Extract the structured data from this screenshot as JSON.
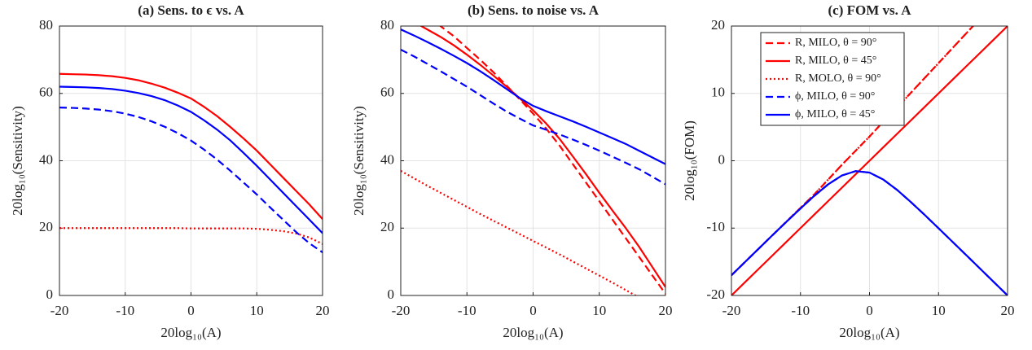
{
  "chart_data": [
    {
      "type": "line",
      "title": "(a) Sens. to ϵ vs. A",
      "xlabel": "20log₁₀(A)",
      "ylabel": "20log₁₀(Sensitivity)",
      "x": [
        -20,
        -18,
        -16,
        -14,
        -12,
        -10,
        -8,
        -6,
        -4,
        -2,
        0,
        2,
        4,
        6,
        8,
        10,
        12,
        14,
        16,
        18,
        20
      ],
      "xlim": [
        -20,
        20
      ],
      "xticks": [
        -20,
        -10,
        0,
        10,
        20
      ],
      "ylim": [
        0,
        80
      ],
      "yticks": [
        0,
        20,
        40,
        60,
        80
      ],
      "grid": true,
      "series": [
        {
          "color": "#ff0000",
          "linestyle": "solid",
          "values": [
            65.8,
            65.7,
            65.6,
            65.4,
            65.1,
            64.6,
            63.9,
            62.9,
            61.7,
            60.2,
            58.5,
            56,
            53.2,
            50,
            46.6,
            43,
            39,
            35,
            31,
            27,
            22.7
          ]
        },
        {
          "color": "#ff0000",
          "linestyle": "dotted",
          "values": [
            20,
            20,
            20,
            20,
            20,
            20,
            20,
            20,
            20,
            20,
            19.9,
            19.9,
            19.9,
            19.9,
            19.9,
            19.8,
            19.5,
            19.1,
            18.4,
            17.2,
            15.3
          ]
        },
        {
          "color": "#0000ff",
          "linestyle": "dashed",
          "values": [
            55.8,
            55.7,
            55.5,
            55.2,
            54.7,
            54,
            53,
            51.7,
            50.1,
            48.2,
            46,
            43.3,
            40.3,
            37,
            33.5,
            30,
            26.2,
            22.5,
            18.8,
            15.5,
            12.8
          ]
        },
        {
          "color": "#0000ff",
          "linestyle": "solid",
          "values": [
            62,
            61.9,
            61.8,
            61.6,
            61.3,
            60.8,
            60.1,
            59.2,
            58,
            56.4,
            54.5,
            52,
            49.2,
            46,
            42.3,
            38.5,
            34.5,
            30.5,
            26.5,
            22.5,
            18.5
          ]
        }
      ]
    },
    {
      "type": "line",
      "title": "(b) Sens. to noise vs. A",
      "xlabel": "20log₁₀(A)",
      "ylabel": "20log₁₀(Sensitivity)",
      "x": [
        -20,
        -18,
        -16,
        -14,
        -12,
        -10,
        -8,
        -6,
        -4,
        -2,
        0,
        2,
        4,
        6,
        8,
        10,
        12,
        14,
        16,
        18,
        20
      ],
      "xlim": [
        -20,
        20
      ],
      "xticks": [
        -20,
        -10,
        0,
        10,
        20
      ],
      "ylim": [
        0,
        80
      ],
      "yticks": [
        0,
        20,
        40,
        60,
        80
      ],
      "grid": true,
      "series": [
        {
          "color": "#ff0000",
          "linestyle": "dashed",
          "values": [
            88,
            86,
            83,
            80,
            77,
            73.5,
            70,
            66.3,
            62.3,
            58.2,
            54,
            49.5,
            44.5,
            39,
            33.5,
            28,
            22.5,
            17,
            11.5,
            6,
            0.5
          ]
        },
        {
          "color": "#ff0000",
          "linestyle": "solid",
          "values": [
            83,
            81.2,
            79,
            76.8,
            74.3,
            71.5,
            68.5,
            65.3,
            62,
            58.5,
            55,
            51,
            46.5,
            41.3,
            36,
            30.5,
            25.2,
            20,
            14.5,
            8.5,
            2.5
          ]
        },
        {
          "color": "#ff0000",
          "linestyle": "dotted",
          "values": [
            37,
            34.8,
            32.6,
            30.5,
            28.4,
            26.3,
            24.2,
            22.2,
            20.2,
            18.2,
            16.2,
            14.2,
            12.2,
            10.1,
            8,
            5.9,
            3.8,
            1.6,
            -0.6,
            -2.9,
            -5.2
          ]
        },
        {
          "color": "#0000ff",
          "linestyle": "dashed",
          "values": [
            73,
            71,
            68.8,
            66.6,
            64.3,
            62,
            59.5,
            57,
            54.6,
            52.5,
            50.5,
            49.2,
            47.8,
            46.3,
            44.7,
            43,
            41.2,
            39.4,
            37.5,
            35.3,
            33
          ]
        },
        {
          "color": "#0000ff",
          "linestyle": "solid",
          "values": [
            79,
            77.2,
            75.3,
            73.3,
            71.2,
            69,
            66.6,
            64,
            61.3,
            58.6,
            56.3,
            54.7,
            53.2,
            51.7,
            50.1,
            48.4,
            46.7,
            45,
            43,
            41,
            39
          ]
        }
      ]
    },
    {
      "type": "line",
      "title": "(c) FOM vs. A",
      "xlabel": "20log₁₀(A)",
      "ylabel": "20log₁₀(FOM)",
      "x": [
        -20,
        -18,
        -16,
        -14,
        -12,
        -10,
        -8,
        -6,
        -4,
        -2,
        0,
        2,
        4,
        6,
        8,
        10,
        12,
        14,
        16,
        18,
        20
      ],
      "xlim": [
        -20,
        20
      ],
      "xticks": [
        -20,
        -10,
        0,
        10,
        20
      ],
      "ylim": [
        -20,
        20
      ],
      "yticks": [
        -20,
        -10,
        0,
        10,
        20
      ],
      "grid": true,
      "legend": "upper left",
      "series": [
        {
          "name": "R, MILO, θ = 90°",
          "color": "#ff0000",
          "linestyle": "dashed",
          "values": [
            -17,
            -15,
            -13,
            -11,
            -9,
            -7,
            -5,
            -2.8,
            -0.6,
            1.5,
            3.6,
            5.8,
            7.9,
            10.1,
            12.3,
            14.5,
            16.7,
            18.9,
            21.1,
            23.3,
            25.5
          ]
        },
        {
          "name": "R, MILO, θ = 45°",
          "color": "#ff0000",
          "linestyle": "solid",
          "values": [
            -20,
            -18,
            -16,
            -14,
            -12,
            -10,
            -8,
            -6,
            -4,
            -2,
            0,
            2,
            4,
            6,
            8,
            10,
            12,
            14,
            16,
            18,
            20
          ]
        },
        {
          "name": "R, MOLO, θ = 90°",
          "color": "#ff0000",
          "linestyle": "dotted",
          "values": [
            -17,
            -15,
            -13,
            -11,
            -9,
            -7,
            -5,
            -2.8,
            -0.6,
            1.5,
            3.6,
            5.8,
            7.9,
            10.1,
            12.3,
            14.5,
            16.7,
            18.9,
            21.1,
            23.3,
            25.5
          ]
        },
        {
          "name": "ϕ, MILO, θ = 90°",
          "color": "#0000ff",
          "linestyle": "dashed",
          "values": [
            -17,
            -15,
            -13,
            -11,
            -9.03,
            -7.09,
            -5.21,
            -3.51,
            -2.19,
            -1.54,
            -1.76,
            -2.79,
            -4.33,
            -6.14,
            -8.05,
            -10.02,
            -12.01,
            -14,
            -16,
            -18,
            -20
          ]
        },
        {
          "name": "ϕ, MILO, θ = 45°",
          "color": "#0000ff",
          "linestyle": "solid",
          "values": [
            -17,
            -15,
            -13,
            -11,
            -9.03,
            -7.09,
            -5.21,
            -3.51,
            -2.19,
            -1.54,
            -1.76,
            -2.79,
            -4.33,
            -6.14,
            -8.05,
            -10.02,
            -12.01,
            -14,
            -16,
            -18,
            -20
          ]
        }
      ]
    }
  ]
}
